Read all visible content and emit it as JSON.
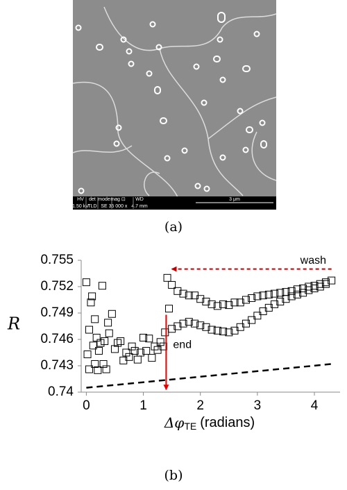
{
  "sem_image": {
    "labels": [
      "HV",
      "det",
      "mode",
      "mag ⊡",
      "WD"
    ],
    "values": [
      "1.50 kV",
      "TLD",
      "SE",
      "35 000 x",
      "4.7 mm"
    ],
    "scale_bar": "3 μm"
  },
  "panel_labels": [
    "(a)",
    "(b)"
  ],
  "chart_data": {
    "type": "scatter",
    "y_label": "R",
    "x_label": "Δφ",
    "x_label_sub": "TE",
    "x_label_unit": "(radians)",
    "xlim": [
      -0.09,
      4.45
    ],
    "xticks": [
      0,
      1,
      2,
      3,
      4
    ],
    "ylim": [
      0.74,
      0.755
    ],
    "yticks": [
      0.74,
      0.743,
      0.746,
      0.749,
      0.752,
      0.755
    ],
    "series": [
      {
        "color": "#000000",
        "marker": "square",
        "x": [
          0,
          0.02,
          0.05,
          0.05,
          0.08,
          0.1,
          0.12,
          0.15,
          0.15,
          0.18,
          0.2,
          0.22,
          0.25,
          0.28,
          0.3,
          0.32,
          0.35,
          0.38,
          0.4,
          0.45,
          0.5,
          0.55,
          0.6,
          0.65,
          0.7,
          0.75,
          0.8,
          0.85,
          0.9,
          0.95,
          1.0,
          1.05,
          1.1,
          1.15,
          1.2,
          1.25,
          1.3,
          1.35,
          1.38,
          1.42,
          1.45,
          1.5,
          1.6,
          1.7,
          1.8,
          1.9,
          2.0,
          2.1,
          2.2,
          2.3,
          2.4,
          2.5,
          2.6,
          2.7,
          2.8,
          2.9,
          3.0,
          3.1,
          3.2,
          3.3,
          3.4,
          3.5,
          3.6,
          3.7,
          3.8,
          3.9,
          4.0,
          4.1,
          4.2,
          4.3,
          1.5,
          1.6,
          1.7,
          1.8,
          1.9,
          2.0,
          2.1,
          2.2,
          2.3,
          2.4,
          2.5,
          2.6,
          2.7,
          2.8,
          2.9,
          3.0,
          3.1,
          3.2,
          3.3,
          3.4,
          3.5,
          3.6,
          3.7,
          3.8,
          3.9,
          4.0,
          4.1,
          4.2
        ],
        "values": [
          0.7525,
          0.7443,
          0.7426,
          0.7471,
          0.7502,
          0.7509,
          0.7453,
          0.7483,
          0.7432,
          0.7462,
          0.7425,
          0.7447,
          0.7456,
          0.7521,
          0.7432,
          0.7458,
          0.7426,
          0.7479,
          0.7467,
          0.7489,
          0.7449,
          0.7456,
          0.7458,
          0.7436,
          0.7445,
          0.744,
          0.7452,
          0.7447,
          0.7437,
          0.7445,
          0.7462,
          0.7447,
          0.7461,
          0.7439,
          0.7452,
          0.7448,
          0.7457,
          0.7452,
          0.7468,
          0.753,
          0.7495,
          0.7522,
          0.7515,
          0.7512,
          0.751,
          0.751,
          0.7506,
          0.7503,
          0.75,
          0.7498,
          0.75,
          0.7499,
          0.7502,
          0.7502,
          0.7505,
          0.7507,
          0.7509,
          0.751,
          0.7511,
          0.7512,
          0.7513,
          0.7514,
          0.7515,
          0.7517,
          0.7518,
          0.752,
          0.7521,
          0.7523,
          0.7525,
          0.7527,
          0.7472,
          0.7475,
          0.7478,
          0.748,
          0.7478,
          0.7476,
          0.7474,
          0.7471,
          0.747,
          0.7469,
          0.7468,
          0.747,
          0.7474,
          0.7478,
          0.7482,
          0.7487,
          0.7492,
          0.7496,
          0.75,
          0.7503,
          0.7506,
          0.7509,
          0.7511,
          0.7513,
          0.7516,
          0.7518,
          0.752,
          0.7523
        ]
      },
      {
        "type": "line",
        "color": "#000000",
        "dashed": true,
        "x": [
          0,
          4.3
        ],
        "values": [
          0.7405,
          0.7432
        ]
      }
    ],
    "annotations": [
      {
        "text": "wash",
        "color": "#c00000",
        "dashed": true,
        "x": [
          4.3,
          1.5
        ],
        "y": [
          0.754,
          0.754
        ]
      },
      {
        "text": "end",
        "color": "#e00000",
        "dashed": false,
        "x": [
          1.4,
          1.4
        ],
        "y": [
          0.7488,
          0.7403
        ]
      }
    ]
  }
}
